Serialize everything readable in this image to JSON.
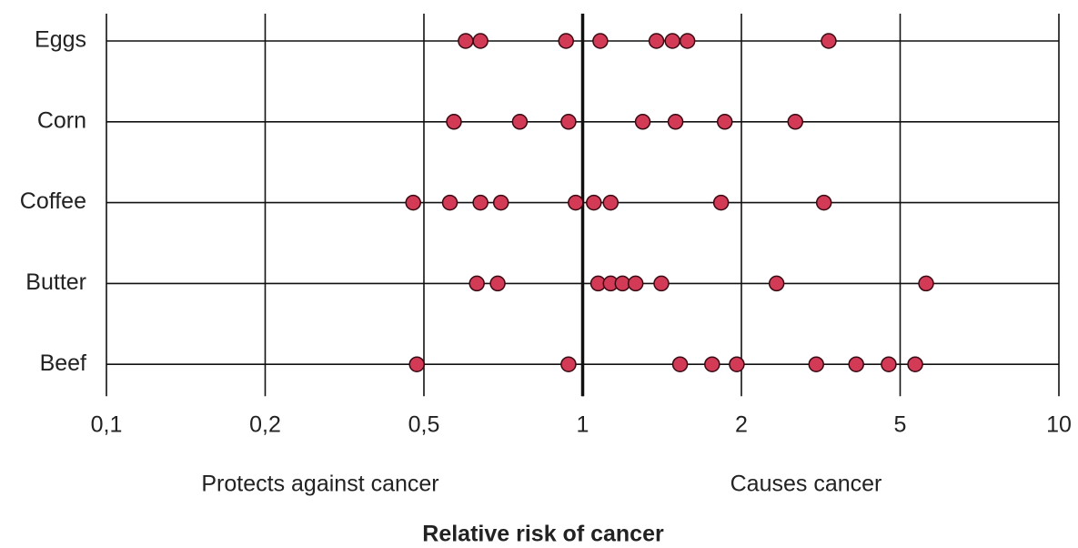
{
  "chart_data": {
    "type": "scatter",
    "xlabel": "Relative risk of cancer",
    "annotations": [
      "Protects against cancer",
      "Causes cancer"
    ],
    "xscale": "log",
    "xlim": [
      0.1,
      10
    ],
    "xticks": [
      {
        "value": 0.1,
        "label": "0,1"
      },
      {
        "value": 0.2,
        "label": "0,2"
      },
      {
        "value": 0.5,
        "label": "0,5"
      },
      1,
      2,
      5,
      10
    ],
    "vline": 1,
    "grid": true,
    "color": "#d23a55",
    "series": [
      {
        "name": "Eggs",
        "values": [
          0.6,
          0.64,
          0.93,
          1.08,
          1.38,
          1.48,
          1.58,
          3.31
        ]
      },
      {
        "name": "Corn",
        "values": [
          0.57,
          0.76,
          0.94,
          1.3,
          1.5,
          1.86,
          2.73
        ]
      },
      {
        "name": "Coffee",
        "values": [
          0.47,
          0.56,
          0.64,
          0.7,
          0.97,
          1.05,
          1.13,
          1.83,
          3.22
        ]
      },
      {
        "name": "Butter",
        "values": [
          0.63,
          0.69,
          1.07,
          1.13,
          1.19,
          1.26,
          1.41,
          2.45,
          5.6
        ]
      },
      {
        "name": "Beef",
        "values": [
          0.48,
          0.94,
          1.53,
          1.76,
          1.96,
          3.08,
          3.88,
          4.68,
          5.34
        ]
      }
    ]
  }
}
